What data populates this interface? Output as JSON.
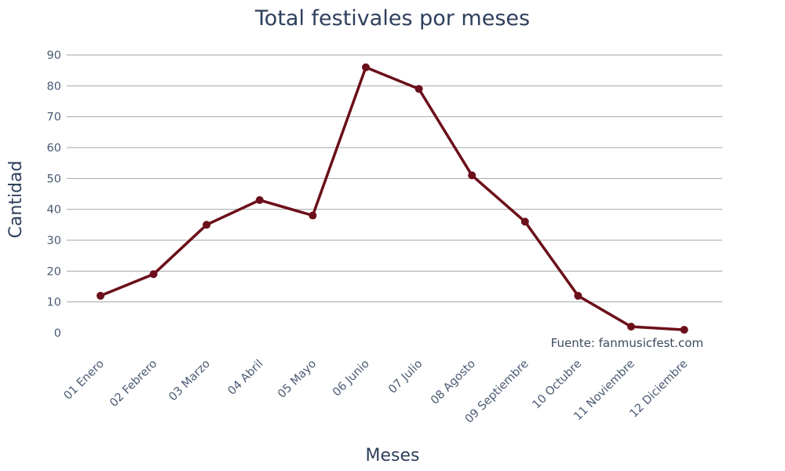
{
  "chart_data": {
    "type": "line",
    "title": "Total festivales por meses",
    "xlabel": "Meses",
    "ylabel": "Cantidad",
    "categories": [
      "01 Enero",
      "02 Febrero",
      "03 Marzo",
      "04 Abril",
      "05 Mayo",
      "06 Junio",
      "07 Julio",
      "08 Agosto",
      "09 Septiembre",
      "10 Octubre",
      "11 Noviembre",
      "12 Diciembre"
    ],
    "values": [
      12,
      19,
      35,
      43,
      38,
      86,
      79,
      51,
      36,
      12,
      2,
      1
    ],
    "ylim": [
      0,
      90
    ],
    "yticks": [
      0,
      10,
      20,
      30,
      40,
      50,
      60,
      70,
      80,
      90
    ],
    "grid": true,
    "annotation": "Fuente: fanmusicfest.com",
    "line_color": "#6b0f1a"
  }
}
